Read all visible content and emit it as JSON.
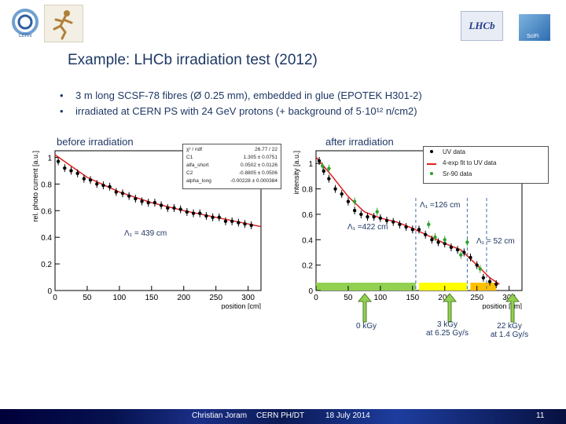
{
  "slide": {
    "title": "Example: LHCb irradiation test (2012)",
    "bullets": [
      "3 m long SCSF-78 fibres (Ø 0.25 mm), embedded in glue (EPOTEK H301-2)",
      "irradiated at CERN PS with 24 GeV protons (+ background of 5·10¹² n/cm2)"
    ],
    "label_before": "before irradiation",
    "label_after": "after irradiation",
    "logos": {
      "left_logo_text": "CERN",
      "right_logo_text": "LHCb",
      "right_logo2_text": "SciFi"
    }
  },
  "plot_before": {
    "ylabel": "rel. photo current [a.u.]",
    "xlabel": "position [cm]",
    "fit_box": [
      {
        "k": "χ² / ndf",
        "v": "26.77 / 22"
      },
      {
        "k": "C1",
        "v": "1.305 ± 0.0751"
      },
      {
        "k": "alfa_short",
        "v": "0.0502 ± 0.0126"
      },
      {
        "k": "C2",
        "v": "-0.8805 ± 0.0506"
      },
      {
        "k": "alpha_long",
        "v": "-0.00228 ± 0.000384"
      }
    ],
    "annotation": "Λ₁ = 439 cm"
  },
  "plot_after": {
    "ylabel": "intensity [a.u.]",
    "xlabel": "position [cm]",
    "legend": [
      "UV data",
      "4-exp fit to UV data",
      "Sr-90 data"
    ],
    "annotations": [
      "Λ₁ =126 cm",
      "Λ₁ =422 cm",
      "Λ₁ = 52 cm"
    ],
    "dose_labels": [
      {
        "line1": "0 kGy",
        "line2": ""
      },
      {
        "line1": "3 kGy",
        "line2": "at 6.25 Gy/s"
      },
      {
        "line1": "22 kGy",
        "line2": "at 1.4 Gy/s"
      }
    ]
  },
  "footer": {
    "author": "Christian Joram",
    "org": "CERN PH/DT",
    "date": "18 July 2014",
    "page": "11"
  },
  "chart_data": [
    {
      "type": "scatter",
      "title": "",
      "xlabel": "position [cm]",
      "ylabel": "rel. photo current [a.u.]",
      "xlim": [
        0,
        320
      ],
      "ylim": [
        0,
        1.05
      ],
      "x_ticks": [
        0,
        50,
        100,
        150,
        200,
        250,
        300
      ],
      "y_ticks": [
        0,
        0.2,
        0.4,
        0.6,
        0.8,
        1
      ],
      "series": [
        {
          "values_x": [
            5,
            15,
            25,
            35,
            45,
            55,
            65,
            75,
            85,
            95,
            105,
            115,
            125,
            135,
            145,
            155,
            165,
            175,
            185,
            195,
            205,
            215,
            225,
            235,
            245,
            255,
            265,
            275,
            285,
            295,
            305
          ],
          "values_y": [
            0.97,
            0.92,
            0.9,
            0.88,
            0.84,
            0.83,
            0.8,
            0.79,
            0.78,
            0.74,
            0.73,
            0.71,
            0.69,
            0.67,
            0.66,
            0.66,
            0.64,
            0.62,
            0.62,
            0.61,
            0.59,
            0.58,
            0.58,
            0.56,
            0.55,
            0.55,
            0.52,
            0.52,
            0.51,
            0.5,
            0.49
          ]
        }
      ],
      "fit": {
        "name": "",
        "x": [
          0,
          50,
          100,
          150,
          200,
          250,
          300,
          320
        ],
        "y": [
          1.02,
          0.85,
          0.74,
          0.66,
          0.6,
          0.55,
          0.5,
          0.48
        ]
      }
    },
    {
      "type": "scatter",
      "title": "",
      "xlabel": "position [cm]",
      "ylabel": "intensity [a.u.]",
      "xlim": [
        0,
        320
      ],
      "ylim": [
        0,
        1.1
      ],
      "x_ticks": [
        0,
        50,
        100,
        150,
        200,
        250,
        300
      ],
      "y_ticks": [
        0,
        0.2,
        0.4,
        0.6,
        0.8,
        1
      ],
      "series": [
        {
          "name": "UV data",
          "values_x": [
            5,
            12,
            20,
            30,
            40,
            50,
            60,
            70,
            80,
            90,
            100,
            110,
            120,
            130,
            140,
            150,
            160,
            170,
            180,
            190,
            200,
            210,
            220,
            230,
            240,
            250,
            260,
            270,
            280
          ],
          "values_y": [
            1.02,
            0.94,
            0.88,
            0.8,
            0.76,
            0.7,
            0.63,
            0.6,
            0.58,
            0.58,
            0.57,
            0.55,
            0.54,
            0.52,
            0.5,
            0.48,
            0.48,
            0.44,
            0.4,
            0.38,
            0.37,
            0.34,
            0.32,
            0.3,
            0.26,
            0.2,
            0.1,
            0.07,
            0.05
          ]
        },
        {
          "name": "Sr-90 data",
          "values_x": [
            10,
            20,
            60,
            95,
            175,
            185,
            200,
            225,
            235,
            255
          ],
          "values_y": [
            0.98,
            0.96,
            0.7,
            0.62,
            0.52,
            0.42,
            0.4,
            0.28,
            0.38,
            0.17
          ]
        }
      ],
      "fit": {
        "name": "4-exp fit to UV data",
        "x": [
          0,
          25,
          50,
          75,
          100,
          125,
          150,
          175,
          200,
          225,
          250,
          270,
          285
        ],
        "y": [
          1.05,
          0.9,
          0.74,
          0.62,
          0.57,
          0.54,
          0.49,
          0.43,
          0.37,
          0.32,
          0.2,
          0.1,
          0.05
        ]
      },
      "dose_regions": [
        {
          "from": 0,
          "to": 155,
          "color": "#92d050"
        },
        {
          "from": 160,
          "to": 235,
          "color": "#ffff00"
        },
        {
          "from": 240,
          "to": 280,
          "color": "#ffc000"
        }
      ]
    }
  ]
}
